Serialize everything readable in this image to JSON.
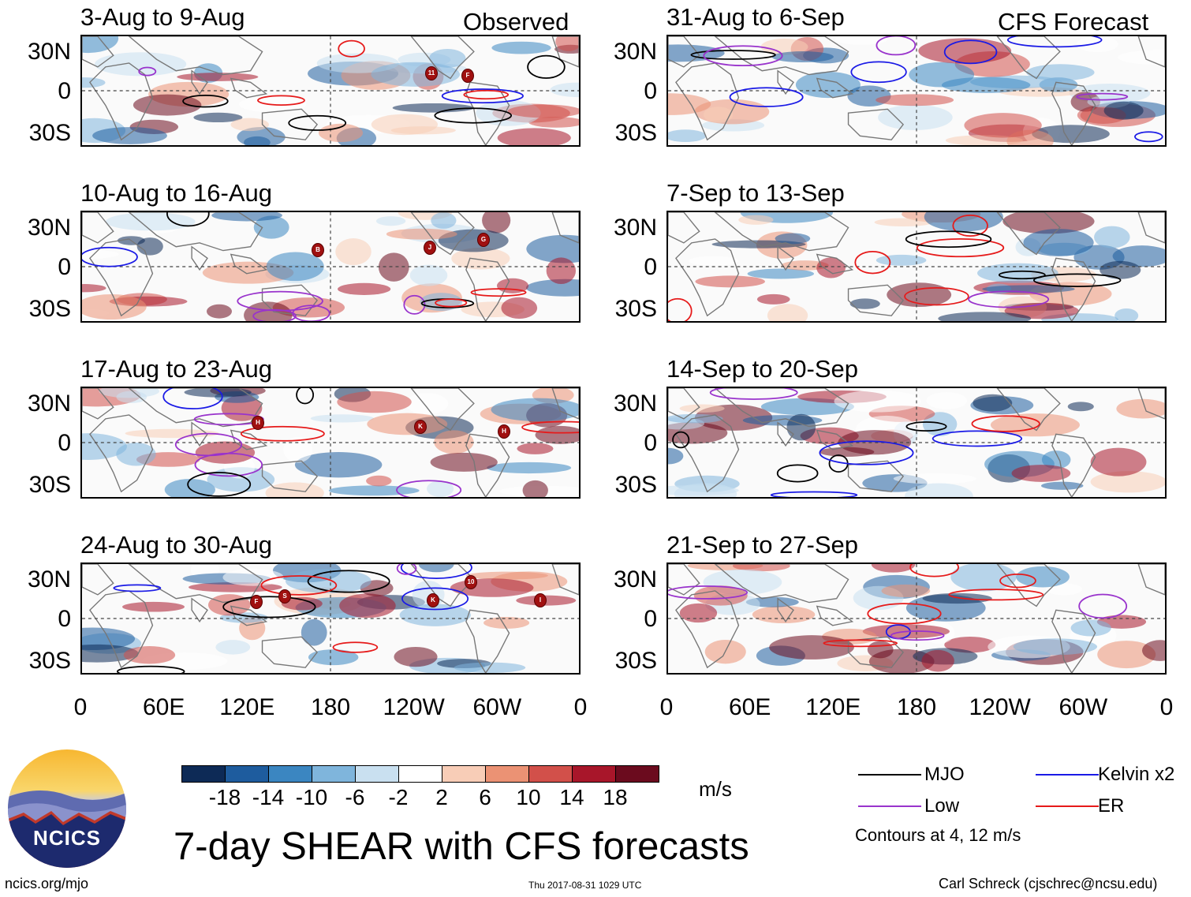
{
  "column_headers": {
    "observed": "Observed",
    "forecast": "CFS Forecast"
  },
  "panels": [
    {
      "title": "3-Aug to 9-Aug",
      "storm_markers": [
        "11",
        "F"
      ]
    },
    {
      "title": "10-Aug to 16-Aug",
      "storm_markers": [
        "B",
        "J",
        "G"
      ]
    },
    {
      "title": "17-Aug to 23-Aug",
      "storm_markers": [
        "H",
        "K",
        "H"
      ]
    },
    {
      "title": "24-Aug to 30-Aug",
      "storm_markers": [
        "F",
        "S",
        "K",
        "10",
        "I"
      ]
    },
    {
      "title": "31-Aug to 6-Sep",
      "storm_markers": []
    },
    {
      "title": "7-Sep to 13-Sep",
      "storm_markers": []
    },
    {
      "title": "14-Sep to 20-Sep",
      "storm_markers": []
    },
    {
      "title": "21-Sep to 27-Sep",
      "storm_markers": []
    }
  ],
  "lat_labels": [
    "30N",
    "0",
    "30S"
  ],
  "lon_labels": [
    "0",
    "60E",
    "120E",
    "180",
    "120W",
    "60W",
    "0"
  ],
  "colorbar": {
    "ticks": [
      "-18",
      "-14",
      "-10",
      "-6",
      "-2",
      "2",
      "6",
      "10",
      "14",
      "18"
    ],
    "colors": [
      "#0d2a56",
      "#1e5c9e",
      "#3b86c1",
      "#7fb5dc",
      "#c9e0f0",
      "#ffffff",
      "#f8cdb7",
      "#eb9274",
      "#d2504a",
      "#a8162a",
      "#6b0b1e"
    ],
    "units": "m/s"
  },
  "title": "7-day SHEAR with CFS forecasts",
  "legend": {
    "items": [
      {
        "label": "MJO",
        "color": "#000000"
      },
      {
        "label": "Kelvin x2",
        "color": "#1a1ae6"
      },
      {
        "label": "Low",
        "color": "#9933cc"
      },
      {
        "label": "ER",
        "color": "#e61a1a"
      }
    ],
    "note": "Contours at 4, 12 m/s"
  },
  "footer": {
    "url": "ncics.org/mjo",
    "timestamp": "Thu 2017-08-31 1029 UTC",
    "credit": "Carl Schreck (cjschrec@ncsu.edu)"
  },
  "logo": {
    "text": "NCICS"
  }
}
